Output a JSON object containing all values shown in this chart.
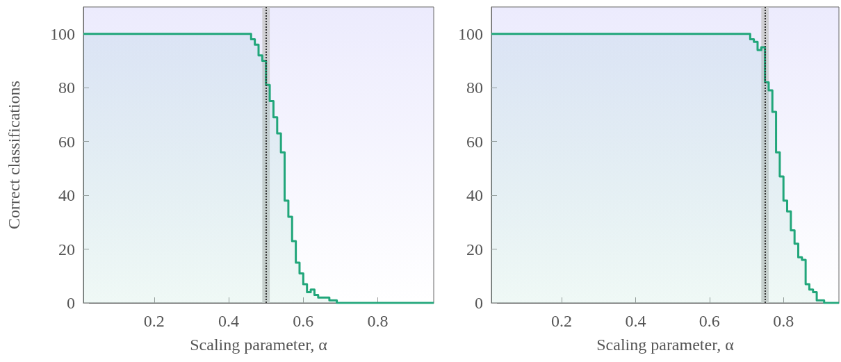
{
  "chart_data": [
    {
      "type": "step",
      "xlabel": "Scaling parameter, α",
      "ylabel": "Correct classifications",
      "color": "#21a67a",
      "x": [
        0.01,
        0.46,
        0.47,
        0.48,
        0.49,
        0.5,
        0.51,
        0.52,
        0.53,
        0.54,
        0.55,
        0.56,
        0.57,
        0.58,
        0.59,
        0.6,
        0.61,
        0.62,
        0.63,
        0.64,
        0.67,
        0.69,
        0.95
      ],
      "values": [
        100,
        98,
        96,
        92,
        90,
        81,
        75,
        69,
        63,
        56,
        38,
        32,
        23,
        15,
        11,
        7,
        4,
        5,
        3,
        2,
        1,
        0,
        0
      ],
      "xlim": [
        0.01,
        0.95
      ],
      "xticks": [
        0.2,
        0.4,
        0.6,
        0.8
      ],
      "ylim": [
        0,
        110
      ],
      "yticks": [
        0,
        20,
        40,
        60,
        80,
        100
      ],
      "grid": false,
      "bands": [
        {
          "axis": "x",
          "from": 0.49,
          "to": 0.51,
          "color": "#c8c8c8"
        }
      ],
      "ref_lines": [
        {
          "axis": "x",
          "value": 0.5,
          "color": "#333333",
          "line_style": "dotted"
        }
      ]
    },
    {
      "type": "step",
      "xlabel": "Scaling parameter, α",
      "color": "#21a67a",
      "x": [
        0.01,
        0.71,
        0.72,
        0.73,
        0.74,
        0.75,
        0.76,
        0.77,
        0.78,
        0.79,
        0.8,
        0.81,
        0.82,
        0.83,
        0.84,
        0.85,
        0.86,
        0.87,
        0.88,
        0.89,
        0.91,
        0.95
      ],
      "values": [
        100,
        98,
        97,
        94,
        95,
        82,
        79,
        71,
        56,
        47,
        38,
        34,
        27,
        22,
        17,
        16,
        7,
        5,
        4,
        1,
        0,
        0
      ],
      "xlim": [
        0.01,
        0.95
      ],
      "xticks": [
        0.2,
        0.4,
        0.6,
        0.8
      ],
      "ylim": [
        0,
        110
      ],
      "yticks": [
        0,
        20,
        40,
        60,
        80,
        100
      ],
      "grid": false,
      "bands": [
        {
          "axis": "x",
          "from": 0.74,
          "to": 0.76,
          "color": "#c8c8c8"
        }
      ],
      "ref_lines": [
        {
          "axis": "x",
          "value": 0.75,
          "color": "#333333",
          "line_style": "dotted"
        }
      ]
    }
  ]
}
